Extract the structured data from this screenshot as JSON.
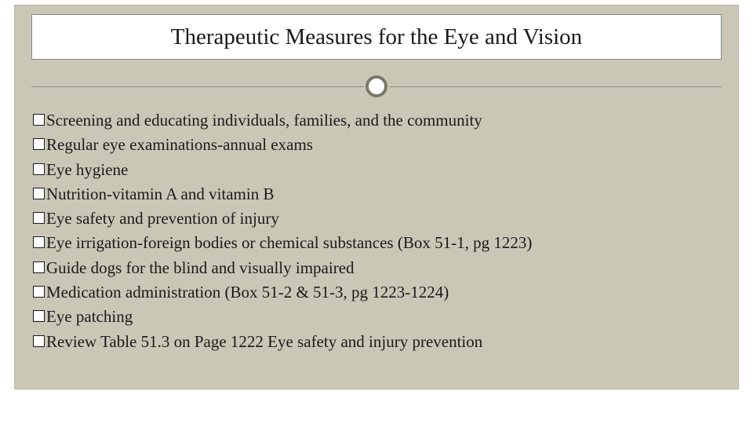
{
  "slide": {
    "title": "Therapeutic Measures for the Eye and Vision",
    "background_color": "#cac7b7",
    "title_box_bg": "#ffffff",
    "title_fontsize": 29,
    "body_fontsize": 21,
    "text_color": "#1a1a1a",
    "divider_ring_color": "#7a7868",
    "bullets": [
      "Screening and educating individuals, families, and the community",
      "Regular eye examinations-annual exams",
      "Eye hygiene",
      "Nutrition-vitamin A and vitamin B",
      "Eye safety and prevention of injury",
      "Eye irrigation-foreign bodies or chemical substances (Box 51-1, pg 1223)",
      "Guide dogs for the blind and visually impaired",
      "Medication administration (Box 51-2 & 51-3, pg 1223-1224)",
      "Eye patching",
      "Review Table 51.3 on Page 1222 Eye safety and injury prevention"
    ]
  }
}
